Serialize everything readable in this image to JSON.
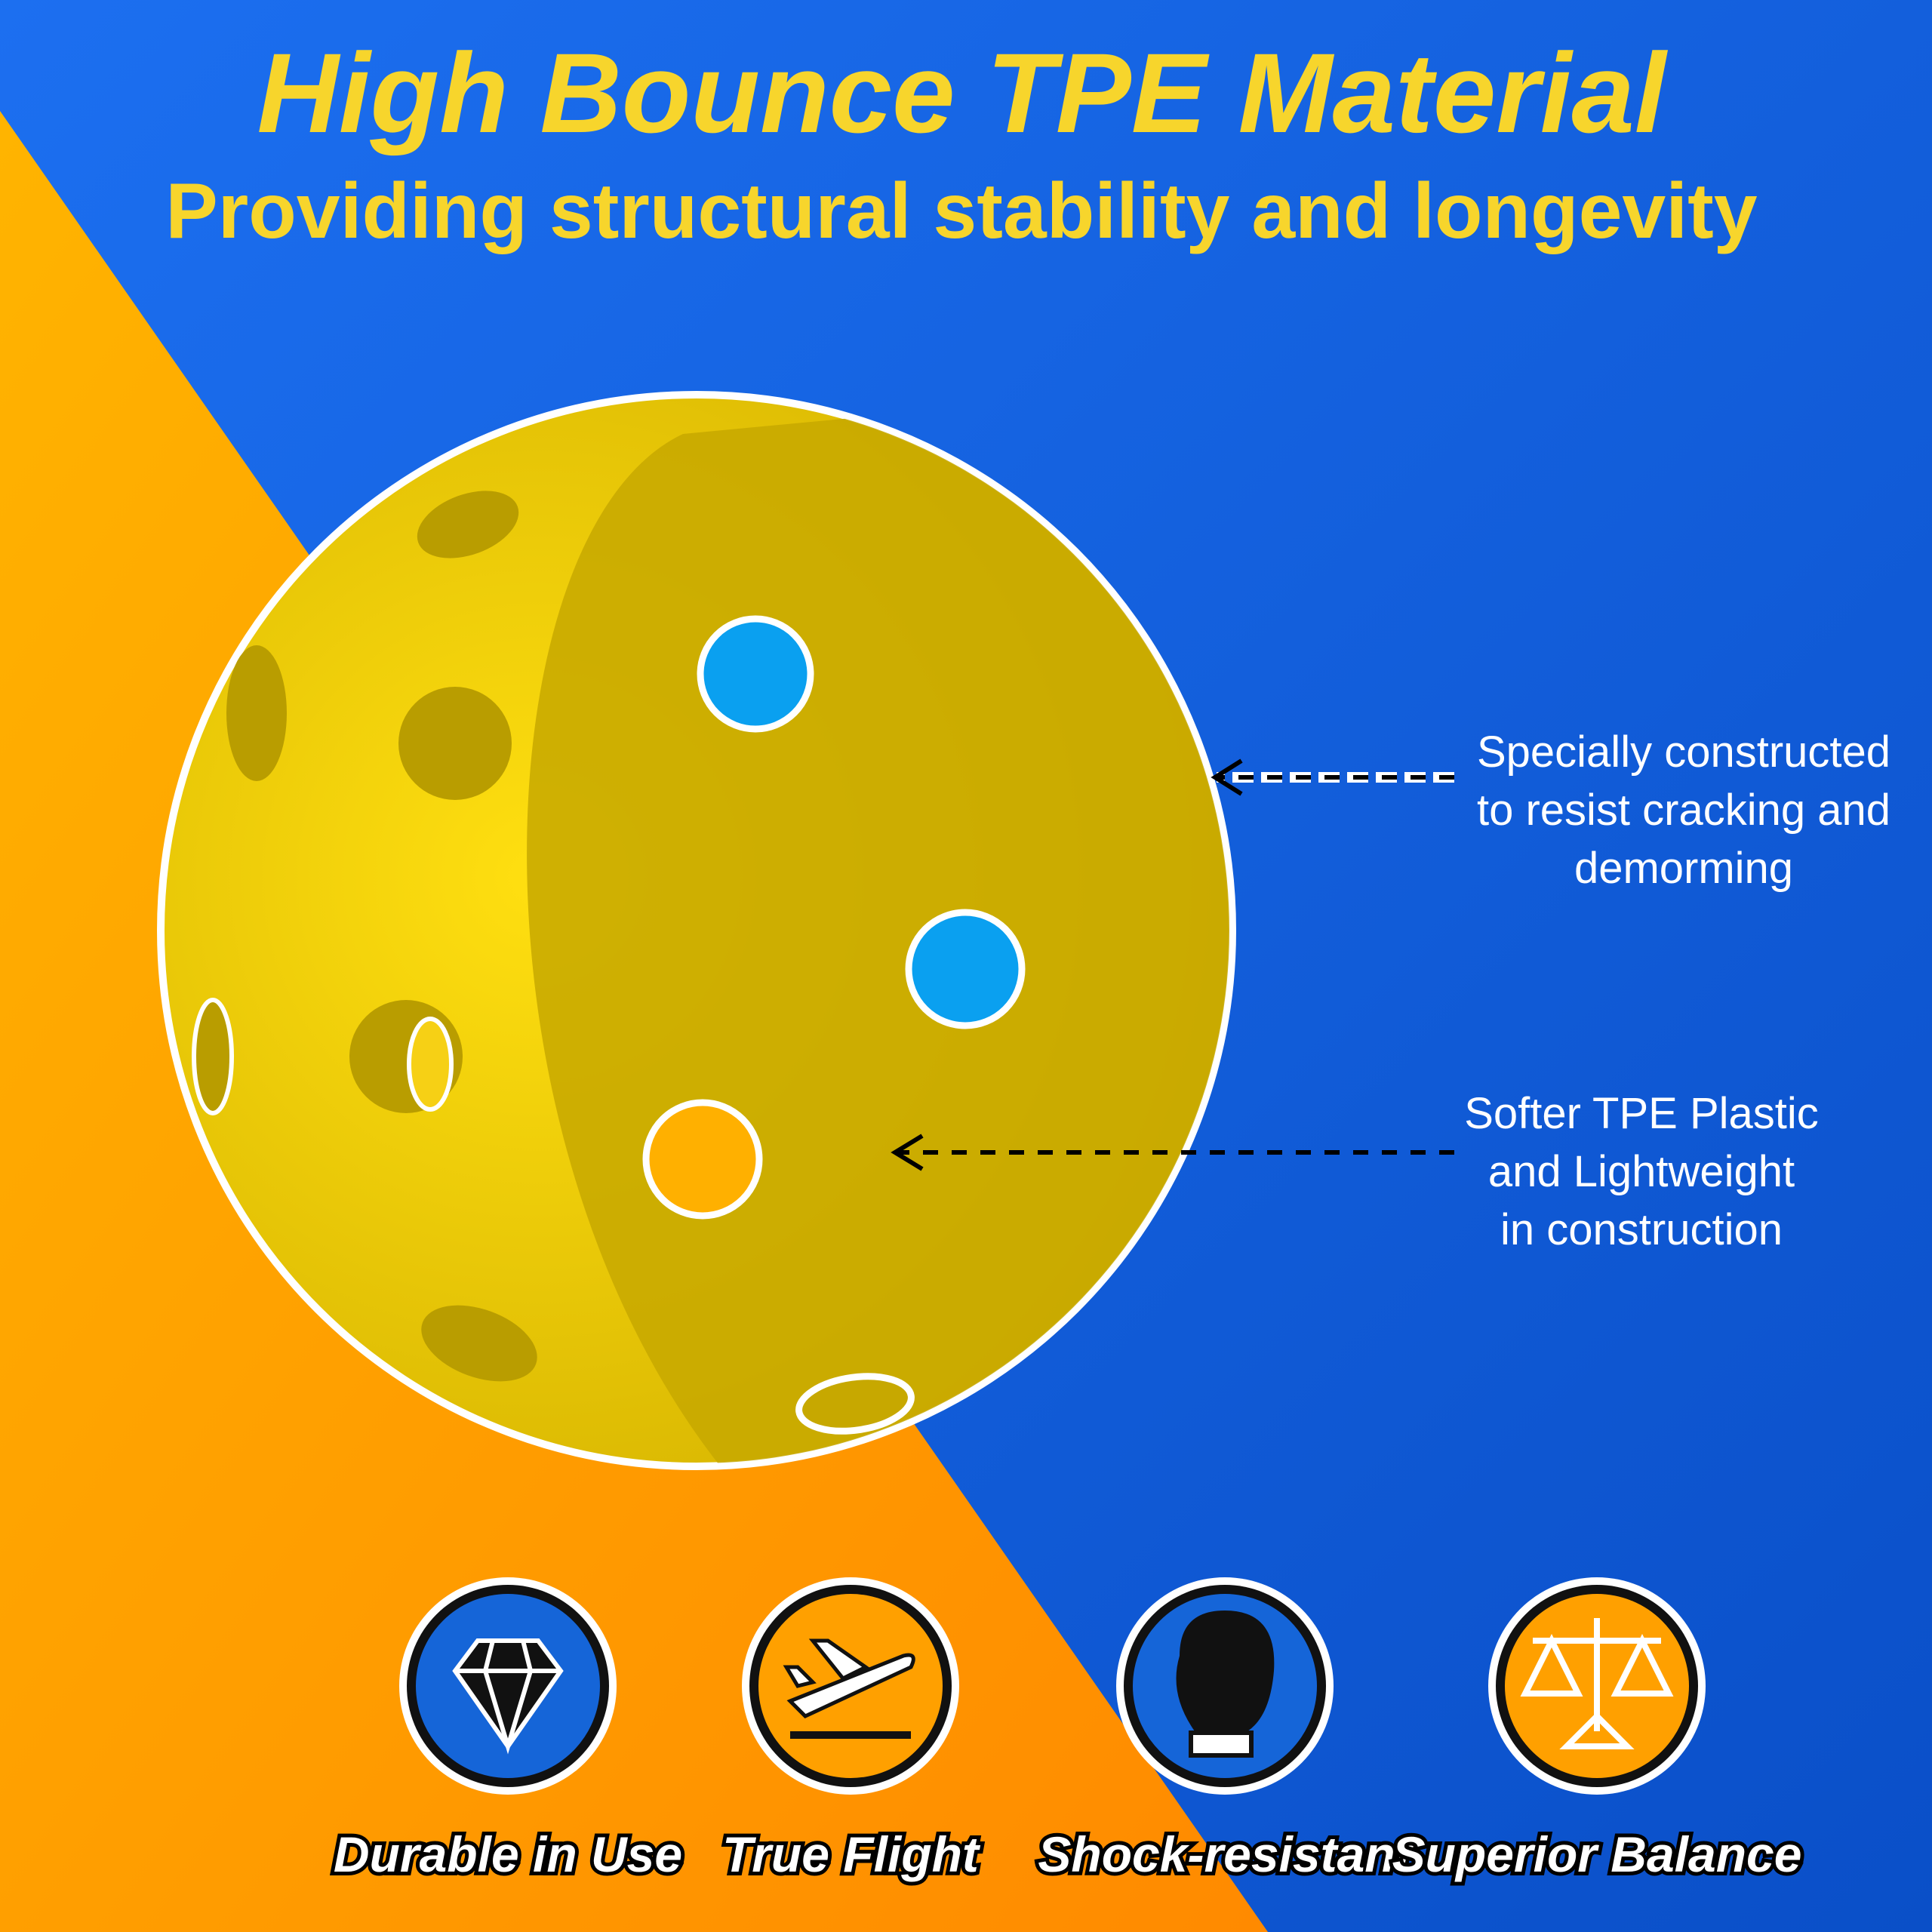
{
  "header": {
    "title": "High Bounce TPE Material",
    "subtitle": "Providing structural stability and longevity"
  },
  "callouts": [
    {
      "lines": [
        "Specially constructed",
        "to resist cracking and",
        "demorming"
      ]
    },
    {
      "lines": [
        "Softer TPE Plastic",
        "and Lightweight",
        "in construction"
      ]
    }
  ],
  "features": [
    {
      "label": "Durable in Use"
    },
    {
      "label": "True Flight"
    },
    {
      "label": "Shock-resistant"
    },
    {
      "label": "Superior Balance"
    }
  ]
}
